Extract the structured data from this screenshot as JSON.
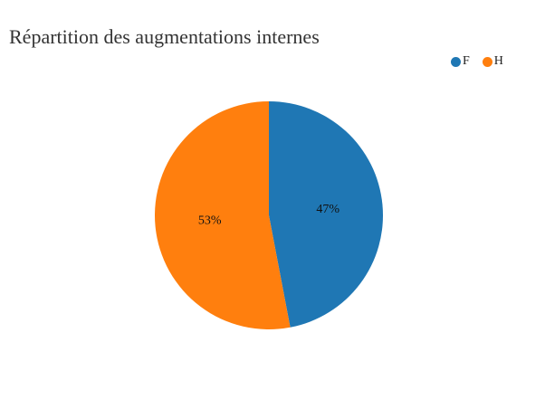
{
  "chart_data": {
    "type": "pie",
    "title": "Répartition des augmentations internes",
    "categories": [
      "F",
      "H"
    ],
    "values": [
      47,
      53
    ],
    "value_labels": [
      "47%",
      "53%"
    ],
    "colors": [
      "#1f77b4",
      "#ff7f0e"
    ],
    "legend_position": "top-right"
  },
  "legend": {
    "items": [
      {
        "label": "F",
        "color": "#1f77b4"
      },
      {
        "label": "H",
        "color": "#ff7f0e"
      }
    ]
  }
}
